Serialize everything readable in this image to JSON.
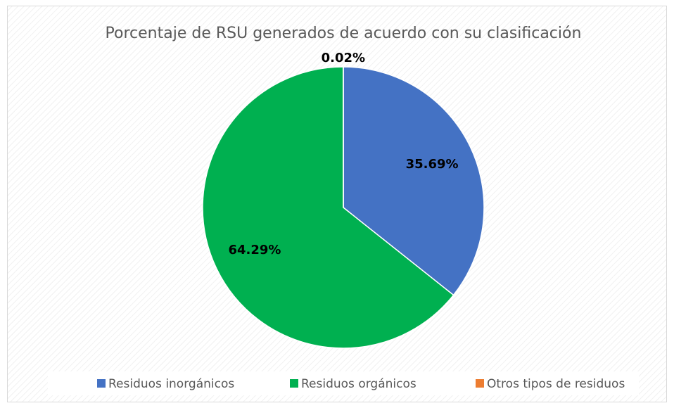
{
  "chart_data": {
    "type": "pie",
    "title": "Porcentaje de RSU generados de acuerdo con su clasificación",
    "categories": [
      "Residuos inorgánicos",
      "Residuos orgánicos",
      "Otros tipos de residuos"
    ],
    "values": [
      35.69,
      64.29,
      0.02
    ],
    "value_labels": [
      "35.69%",
      "64.29%",
      "0.02%"
    ],
    "colors": [
      "#4472c4",
      "#00b050",
      "#ed7d31"
    ],
    "legend": "bottom"
  }
}
